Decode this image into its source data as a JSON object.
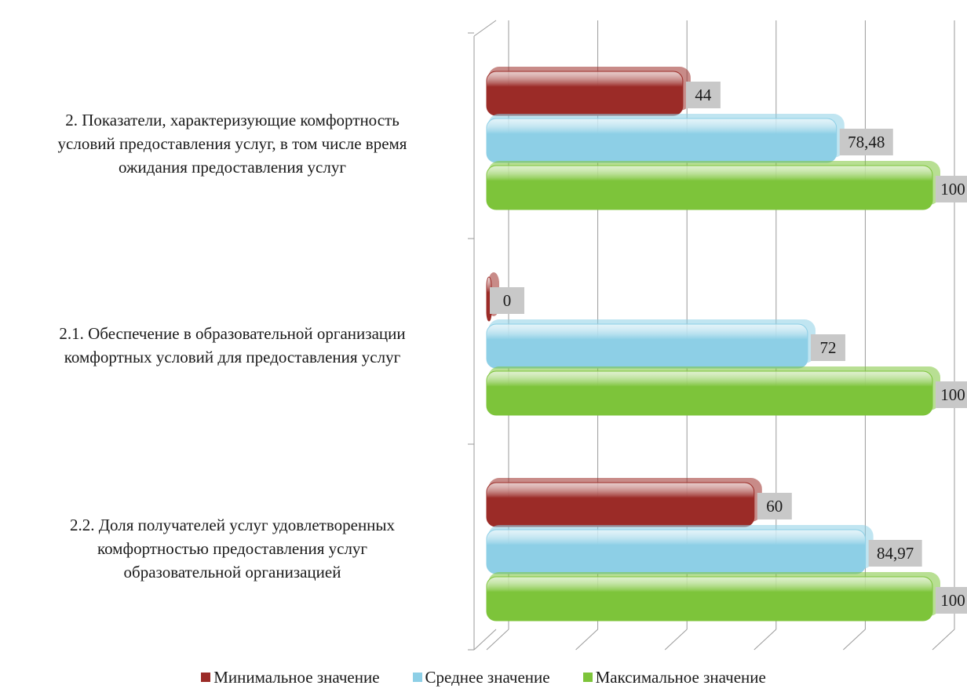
{
  "chart_data": {
    "type": "bar",
    "orientation": "horizontal",
    "categories": [
      "2. Показатели, характеризующие  комфортность\nусловий предоставления услуг, в том числе время\nожидания предоставления услуг",
      "2.1. Обеспечение в образовательной организации\nкомфортных условий для предоставления услуг",
      "2.2. Доля получателей услуг удовлетворенных\nкомфортностью предоставления услуг\nобразовательной организацией"
    ],
    "series": [
      {
        "name": "Минимальное значение",
        "color": "#9b2b27",
        "values": [
          44,
          0,
          60
        ],
        "labels": [
          "44",
          "0",
          "60"
        ]
      },
      {
        "name": "Среднее значение",
        "color": "#8dcfe6",
        "values": [
          78.48,
          72,
          84.97
        ],
        "labels": [
          "78,48",
          "72",
          "84,97"
        ]
      },
      {
        "name": "Максимальное значение",
        "color": "#7dc43a",
        "values": [
          100,
          100,
          100
        ],
        "labels": [
          "100",
          "100",
          "100"
        ]
      }
    ],
    "xlim": [
      0,
      100
    ],
    "grid": true,
    "legend": "bottom",
    "title": "",
    "xlabel": "",
    "ylabel": ""
  }
}
